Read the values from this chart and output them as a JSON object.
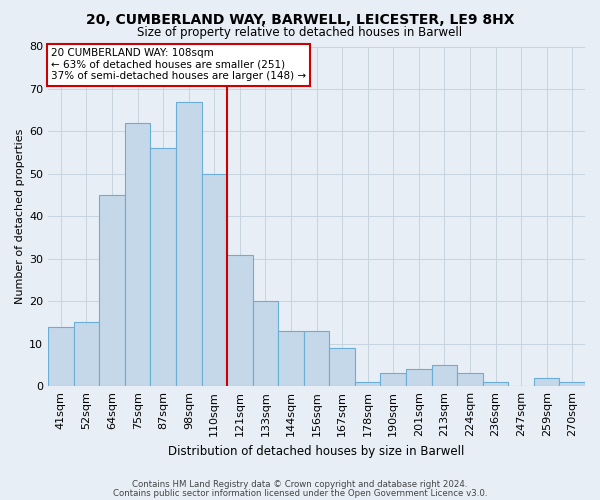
{
  "title_line1": "20, CUMBERLAND WAY, BARWELL, LEICESTER, LE9 8HX",
  "title_line2": "Size of property relative to detached houses in Barwell",
  "xlabel": "Distribution of detached houses by size in Barwell",
  "ylabel": "Number of detached properties",
  "categories": [
    "41sqm",
    "52sqm",
    "64sqm",
    "75sqm",
    "87sqm",
    "98sqm",
    "110sqm",
    "121sqm",
    "133sqm",
    "144sqm",
    "156sqm",
    "167sqm",
    "178sqm",
    "190sqm",
    "201sqm",
    "213sqm",
    "224sqm",
    "236sqm",
    "247sqm",
    "259sqm",
    "270sqm"
  ],
  "values": [
    14,
    15,
    45,
    62,
    56,
    67,
    50,
    31,
    20,
    13,
    13,
    9,
    1,
    3,
    4,
    5,
    3,
    1,
    0,
    2,
    1
  ],
  "bar_color": "#c5d8ea",
  "bar_edge_color": "#6aadd5",
  "vline_color": "#cc0000",
  "annotation_title": "20 CUMBERLAND WAY: 108sqm",
  "annotation_line1": "← 63% of detached houses are smaller (251)",
  "annotation_line2": "37% of semi-detached houses are larger (148) →",
  "annotation_box_color": "white",
  "annotation_box_edge_color": "#cc0000",
  "ylim": [
    0,
    80
  ],
  "yticks": [
    0,
    10,
    20,
    30,
    40,
    50,
    60,
    70,
    80
  ],
  "grid_color": "#c8d4e0",
  "background_color": "#e8eef5",
  "footnote1": "Contains HM Land Registry data © Crown copyright and database right 2024.",
  "footnote2": "Contains public sector information licensed under the Open Government Licence v3.0."
}
